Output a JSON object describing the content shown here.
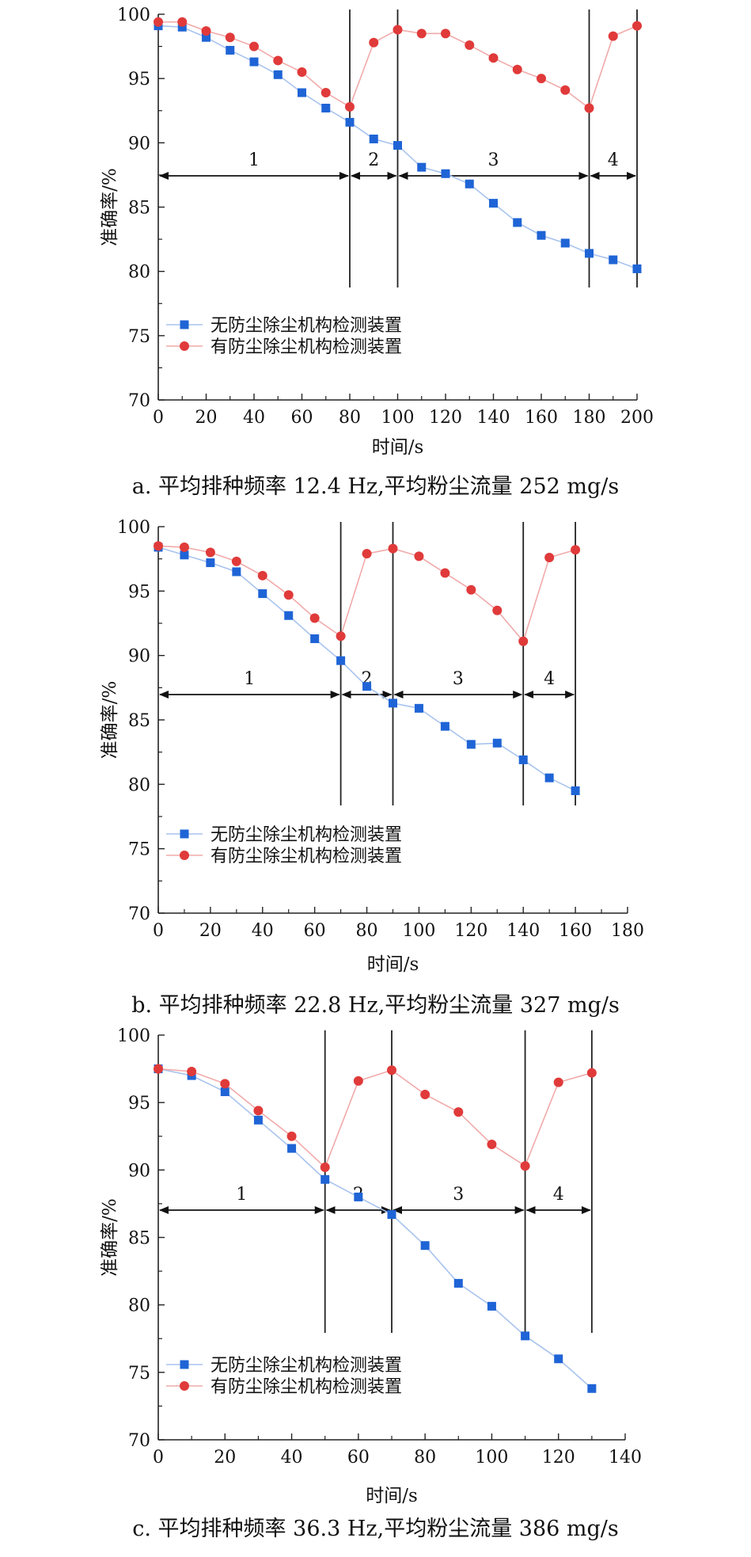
{
  "chart_data": [
    {
      "type": "line",
      "caption": "a. 平均排种频率 12.4 Hz,平均粉尘流量 252 mg/s",
      "xlabel": "时间/s",
      "ylabel": "准确率/%",
      "xlim": [
        0,
        200
      ],
      "ylim": [
        70,
        100
      ],
      "xticks": [
        0,
        20,
        40,
        60,
        80,
        100,
        120,
        140,
        160,
        180,
        200
      ],
      "yticks": [
        70,
        75,
        80,
        85,
        90,
        95,
        100
      ],
      "grid": false,
      "legend": "bottom-left",
      "phase_boundaries": [
        80,
        100,
        180,
        200
      ],
      "phase_labels": [
        "1",
        "2",
        "3",
        "4"
      ],
      "series": [
        {
          "name": "无防尘除尘机构检测装置",
          "color": "#1f64d6",
          "marker": "square",
          "x": [
            0,
            10,
            20,
            30,
            40,
            50,
            60,
            70,
            80,
            90,
            100,
            110,
            120,
            130,
            140,
            150,
            160,
            170,
            180,
            190,
            200
          ],
          "y": [
            99.1,
            99.0,
            98.2,
            97.2,
            96.3,
            95.3,
            93.9,
            92.7,
            91.6,
            90.3,
            89.8,
            88.1,
            87.6,
            86.8,
            85.3,
            83.8,
            82.8,
            82.2,
            81.4,
            80.9,
            80.2
          ]
        },
        {
          "name": "有防尘除尘机构检测装置",
          "color": "#e03a3a",
          "marker": "circle",
          "x": [
            0,
            10,
            20,
            30,
            40,
            50,
            60,
            70,
            80,
            90,
            100,
            110,
            120,
            130,
            140,
            150,
            160,
            170,
            180,
            190,
            200
          ],
          "y": [
            99.4,
            99.4,
            98.7,
            98.2,
            97.5,
            96.4,
            95.5,
            93.9,
            92.8,
            97.8,
            98.8,
            98.5,
            98.5,
            97.6,
            96.6,
            95.7,
            95.0,
            94.1,
            92.7,
            98.3,
            99.1
          ]
        }
      ]
    },
    {
      "type": "line",
      "caption": "b. 平均排种频率 22.8 Hz,平均粉尘流量 327 mg/s",
      "xlabel": "时间/s",
      "ylabel": "准确率/%",
      "xlim": [
        0,
        180
      ],
      "ylim": [
        70,
        100
      ],
      "xticks": [
        0,
        20,
        40,
        60,
        80,
        100,
        120,
        140,
        160,
        180
      ],
      "yticks": [
        70,
        75,
        80,
        85,
        90,
        95,
        100
      ],
      "grid": false,
      "legend": "bottom-left",
      "phase_boundaries": [
        70,
        90,
        140,
        160
      ],
      "phase_labels": [
        "1",
        "2",
        "3",
        "4"
      ],
      "series": [
        {
          "name": "无防尘除尘机构检测装置",
          "color": "#1f64d6",
          "marker": "square",
          "x": [
            0,
            10,
            20,
            30,
            40,
            50,
            60,
            70,
            80,
            90,
            100,
            110,
            120,
            130,
            140,
            150,
            160
          ],
          "y": [
            98.4,
            97.8,
            97.2,
            96.5,
            94.8,
            93.1,
            91.3,
            89.6,
            87.6,
            86.3,
            85.9,
            84.5,
            83.1,
            83.2,
            81.9,
            80.5,
            79.5
          ]
        },
        {
          "name": "有防尘除尘机构检测装置",
          "color": "#e03a3a",
          "marker": "circle",
          "x": [
            0,
            10,
            20,
            30,
            40,
            50,
            60,
            70,
            80,
            90,
            100,
            110,
            120,
            130,
            140,
            150,
            160
          ],
          "y": [
            98.5,
            98.4,
            98.0,
            97.3,
            96.2,
            94.7,
            92.9,
            91.5,
            97.9,
            98.3,
            97.7,
            96.4,
            95.1,
            93.5,
            91.1,
            97.6,
            98.2
          ]
        }
      ]
    },
    {
      "type": "line",
      "caption": "c. 平均排种频率 36.3 Hz,平均粉尘流量 386 mg/s",
      "xlabel": "时间/s",
      "ylabel": "准确率/%",
      "xlim": [
        0,
        140
      ],
      "ylim": [
        70,
        100
      ],
      "xticks": [
        0,
        20,
        40,
        60,
        80,
        100,
        120,
        140
      ],
      "yticks": [
        70,
        75,
        80,
        85,
        90,
        95,
        100
      ],
      "grid": false,
      "legend": "bottom-left",
      "phase_boundaries": [
        50,
        70,
        110,
        130
      ],
      "phase_labels": [
        "1",
        "2",
        "3",
        "4"
      ],
      "series": [
        {
          "name": "无防尘除尘机构检测装置",
          "color": "#1f64d6",
          "marker": "square",
          "x": [
            0,
            10,
            20,
            30,
            40,
            50,
            60,
            70,
            80,
            90,
            100,
            110,
            120,
            130
          ],
          "y": [
            97.5,
            97.0,
            95.8,
            93.7,
            91.6,
            89.3,
            88.0,
            86.7,
            84.4,
            81.6,
            79.9,
            77.7,
            76.0,
            73.8
          ]
        },
        {
          "name": "有防尘除尘机构检测装置",
          "color": "#e03a3a",
          "marker": "circle",
          "x": [
            0,
            10,
            20,
            30,
            40,
            50,
            60,
            70,
            80,
            90,
            100,
            110,
            120,
            130
          ],
          "y": [
            97.5,
            97.3,
            96.4,
            94.4,
            92.5,
            90.2,
            96.6,
            97.4,
            95.6,
            94.3,
            91.9,
            90.3,
            96.5,
            97.2
          ]
        }
      ]
    }
  ]
}
